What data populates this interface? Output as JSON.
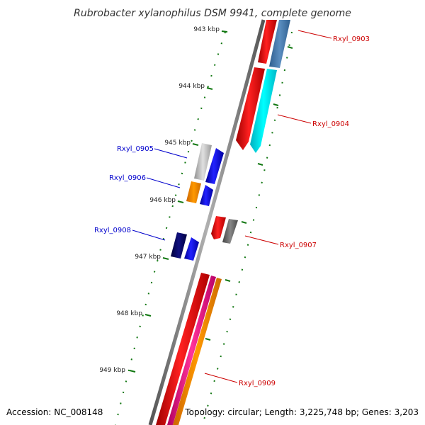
{
  "title": "Rubrobacter xylanophilus DSM 9941, complete genome",
  "footer": {
    "accession": "Accession: NC_008148",
    "topology": "Topology: circular; Length: 3,225,748 bp; Genes: 3,203"
  },
  "ticks": [
    "943 kbp",
    "944 kbp",
    "945 kbp",
    "946 kbp",
    "947 kbp",
    "948 kbp",
    "949 kbp"
  ],
  "genes": [
    {
      "name": "Rxyl_0903",
      "color": "#cc0000"
    },
    {
      "name": "Rxyl_0904",
      "color": "#cc0000"
    },
    {
      "name": "Rxyl_0905",
      "color": "#0000cc"
    },
    {
      "name": "Rxyl_0906",
      "color": "#0000cc"
    },
    {
      "name": "Rxyl_0907",
      "color": "#cc0000"
    },
    {
      "name": "Rxyl_0908",
      "color": "#0000cc"
    },
    {
      "name": "Rxyl_0909",
      "color": "#cc0000"
    }
  ],
  "colors": {
    "backbone": "#8a8a8a",
    "tick": "#117711",
    "forward_strand": "#ff0000",
    "reverse_strand": "#0000ff"
  }
}
